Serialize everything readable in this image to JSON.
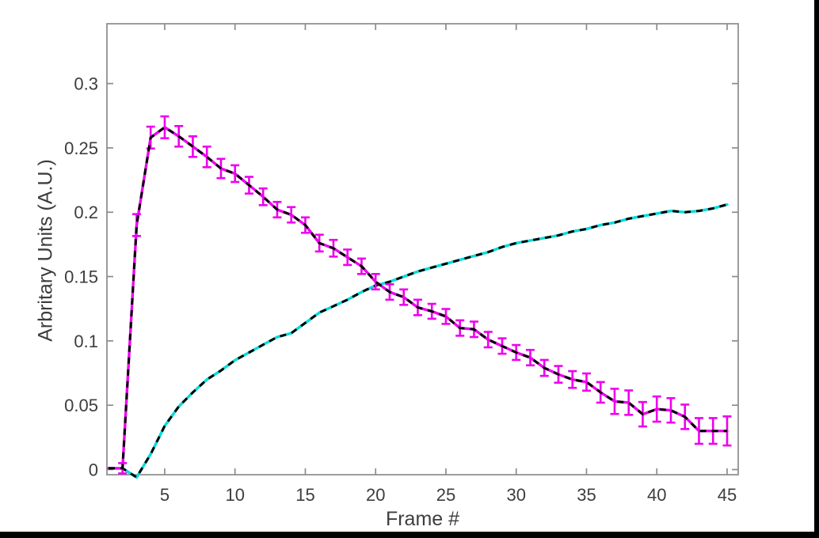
{
  "window": {
    "edge_color": "#000000",
    "background": "#ffffff"
  },
  "chart_data": {
    "type": "line",
    "title": "",
    "xlabel": "Frame #",
    "ylabel": "Arbritary Units (A.U.)",
    "grid": false,
    "legend": "none",
    "xlim": [
      0.89,
      45.79
    ],
    "ylim": [
      -0.004,
      0.3465
    ],
    "x_ticks": [
      5,
      10,
      15,
      20,
      25,
      30,
      35,
      40,
      45
    ],
    "y_ticks": [
      0,
      0.05,
      0.1,
      0.15,
      0.2,
      0.25,
      0.3
    ],
    "y_tick_labels": [
      "0",
      "0.05",
      "0.1",
      "0.15",
      "0.2",
      "0.25",
      "0.3"
    ],
    "axis_color": "#8b8b8b",
    "text_color": "#3d3d3d",
    "overlay_dash_color": "#000000",
    "x": [
      1,
      2,
      3,
      4,
      5,
      6,
      7,
      8,
      9,
      10,
      11,
      12,
      13,
      14,
      15,
      16,
      17,
      18,
      19,
      20,
      21,
      22,
      23,
      24,
      25,
      26,
      27,
      28,
      29,
      30,
      31,
      32,
      33,
      34,
      35,
      36,
      37,
      38,
      39,
      40,
      41,
      42,
      43,
      44,
      45
    ],
    "series": [
      {
        "name": "rising-curve",
        "color": "#00dcdc",
        "style": "solid-with-black-dashed-overlay",
        "error_bars": false,
        "values": [
          0.001,
          0.001,
          -0.006,
          0.012,
          0.034,
          0.049,
          0.06,
          0.07,
          0.077,
          0.085,
          0.091,
          0.097,
          0.103,
          0.106,
          0.114,
          0.122,
          0.127,
          0.132,
          0.138,
          0.143,
          0.146,
          0.15,
          0.154,
          0.157,
          0.16,
          0.163,
          0.166,
          0.169,
          0.173,
          0.176,
          0.178,
          0.18,
          0.182,
          0.185,
          0.187,
          0.19,
          0.192,
          0.195,
          0.197,
          0.199,
          0.201,
          0.2,
          0.201,
          0.203,
          0.206
        ]
      },
      {
        "name": "decaying-curve",
        "color": "#ee00ee",
        "style": "solid-with-black-dashed-overlay",
        "error_bars": true,
        "values": [
          0.001,
          0.001,
          0.19,
          0.258,
          0.266,
          0.259,
          0.251,
          0.243,
          0.234,
          0.23,
          0.221,
          0.212,
          0.202,
          0.198,
          0.19,
          0.176,
          0.172,
          0.165,
          0.158,
          0.146,
          0.138,
          0.134,
          0.126,
          0.123,
          0.119,
          0.11,
          0.109,
          0.101,
          0.096,
          0.091,
          0.087,
          0.079,
          0.074,
          0.07,
          0.068,
          0.06,
          0.053,
          0.052,
          0.043,
          0.047,
          0.046,
          0.041,
          0.03,
          0.03,
          0.03
        ],
        "errors": [
          0,
          0.004,
          0.0085,
          0.0085,
          0.0085,
          0.008,
          0.008,
          0.008,
          0.0075,
          0.0065,
          0.0065,
          0.0065,
          0.006,
          0.006,
          0.006,
          0.0065,
          0.0065,
          0.006,
          0.006,
          0.006,
          0.006,
          0.006,
          0.006,
          0.0058,
          0.0058,
          0.006,
          0.006,
          0.006,
          0.006,
          0.0058,
          0.006,
          0.0062,
          0.0065,
          0.0065,
          0.0067,
          0.008,
          0.0098,
          0.0095,
          0.0095,
          0.0098,
          0.0095,
          0.0095,
          0.01,
          0.01,
          0.0113
        ]
      }
    ]
  }
}
